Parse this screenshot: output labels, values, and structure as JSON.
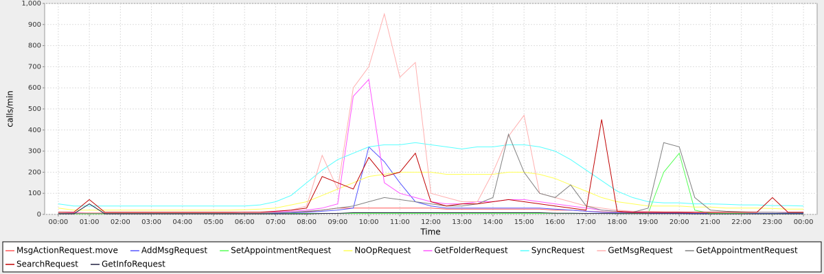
{
  "chart_data": {
    "type": "line",
    "y_label": "calls/min",
    "x_label": "Time",
    "xlim": [
      -0.44,
      24.44
    ],
    "ylim": [
      0,
      1000
    ],
    "xticks": [
      {
        "value": 0,
        "label": "00:00"
      },
      {
        "value": 1,
        "label": "01:00"
      },
      {
        "value": 2,
        "label": "02:00"
      },
      {
        "value": 3,
        "label": "03:00"
      },
      {
        "value": 4,
        "label": "04:00"
      },
      {
        "value": 5,
        "label": "05:00"
      },
      {
        "value": 6,
        "label": "06:00"
      },
      {
        "value": 7,
        "label": "07:00"
      },
      {
        "value": 8,
        "label": "08:00"
      },
      {
        "value": 9,
        "label": "09:00"
      },
      {
        "value": 10,
        "label": "10:00"
      },
      {
        "value": 11,
        "label": "11:00"
      },
      {
        "value": 12,
        "label": "12:00"
      },
      {
        "value": 13,
        "label": "13:00"
      },
      {
        "value": 14,
        "label": "14:00"
      },
      {
        "value": 15,
        "label": "15:00"
      },
      {
        "value": 16,
        "label": "16:00"
      },
      {
        "value": 17,
        "label": "17:00"
      },
      {
        "value": 18,
        "label": "18:00"
      },
      {
        "value": 19,
        "label": "19:00"
      },
      {
        "value": 20,
        "label": "20:00"
      },
      {
        "value": 21,
        "label": "21:00"
      },
      {
        "value": 22,
        "label": "22:00"
      },
      {
        "value": 23,
        "label": "23:00"
      },
      {
        "value": 24,
        "label": "00:00"
      }
    ],
    "yticks": [
      0,
      100,
      200,
      300,
      400,
      500,
      600,
      700,
      800,
      900,
      {
        "value": 1000,
        "label": "1,000"
      }
    ],
    "grid": true,
    "x": [
      0,
      0.5,
      1,
      1.5,
      2,
      2.5,
      3,
      3.5,
      4,
      4.5,
      5,
      5.5,
      6,
      6.5,
      7,
      7.5,
      8,
      8.5,
      9,
      9.5,
      10,
      10.5,
      11,
      11.5,
      12,
      12.5,
      13,
      13.5,
      14,
      14.5,
      15,
      15.5,
      16,
      16.5,
      17,
      17.5,
      18,
      18.5,
      19,
      19.5,
      20,
      20.5,
      21,
      21.5,
      22,
      22.5,
      23,
      23.5,
      24
    ],
    "series": [
      {
        "name": "MsgActionRequest.move",
        "color": "#ff5555",
        "values": [
          3,
          3,
          3,
          3,
          3,
          3,
          3,
          3,
          3,
          3,
          3,
          3,
          3,
          3,
          5,
          8,
          12,
          20,
          30,
          30,
          30,
          30,
          30,
          30,
          30,
          25,
          25,
          25,
          25,
          25,
          25,
          25,
          20,
          20,
          15,
          12,
          10,
          8,
          8,
          8,
          8,
          6,
          6,
          5,
          5,
          5,
          5,
          4,
          4
        ]
      },
      {
        "name": "AddMsgRequest",
        "color": "#5555ff",
        "values": [
          5,
          5,
          5,
          5,
          5,
          5,
          5,
          5,
          5,
          5,
          5,
          5,
          5,
          5,
          5,
          8,
          10,
          15,
          20,
          30,
          320,
          250,
          150,
          60,
          40,
          30,
          30,
          30,
          30,
          30,
          30,
          30,
          25,
          20,
          15,
          10,
          8,
          6,
          6,
          6,
          6,
          5,
          5,
          5,
          5,
          5,
          5,
          5,
          5
        ]
      },
      {
        "name": "SetAppointmentRequest",
        "color": "#55ff55",
        "values": [
          3,
          3,
          3,
          3,
          3,
          3,
          3,
          3,
          3,
          3,
          3,
          3,
          3,
          3,
          3,
          5,
          5,
          5,
          5,
          5,
          5,
          5,
          5,
          5,
          5,
          5,
          5,
          5,
          5,
          5,
          5,
          5,
          5,
          5,
          5,
          5,
          5,
          5,
          5,
          200,
          290,
          20,
          5,
          5,
          5,
          3,
          3,
          3,
          3
        ]
      },
      {
        "name": "NoOpRequest",
        "color": "#ffff55",
        "values": [
          30,
          20,
          20,
          20,
          20,
          20,
          20,
          20,
          20,
          20,
          20,
          20,
          22,
          25,
          30,
          45,
          60,
          90,
          120,
          150,
          180,
          190,
          200,
          200,
          200,
          190,
          190,
          190,
          190,
          200,
          200,
          190,
          170,
          140,
          110,
          80,
          60,
          50,
          40,
          40,
          40,
          35,
          35,
          30,
          30,
          30,
          28,
          25,
          25
        ]
      },
      {
        "name": "GetFolderRequest",
        "color": "#ff55ff",
        "values": [
          10,
          8,
          8,
          8,
          8,
          8,
          8,
          8,
          8,
          8,
          8,
          8,
          10,
          10,
          12,
          15,
          20,
          30,
          50,
          560,
          640,
          150,
          100,
          80,
          60,
          50,
          50,
          60,
          60,
          70,
          70,
          60,
          50,
          40,
          30,
          20,
          15,
          12,
          10,
          10,
          10,
          10,
          10,
          10,
          10,
          10,
          10,
          10,
          10
        ]
      },
      {
        "name": "SyncRequest",
        "color": "#55ffff",
        "values": [
          50,
          40,
          40,
          40,
          40,
          40,
          40,
          40,
          40,
          40,
          40,
          40,
          40,
          45,
          60,
          90,
          150,
          210,
          260,
          290,
          320,
          330,
          330,
          340,
          330,
          320,
          310,
          320,
          320,
          330,
          330,
          320,
          300,
          260,
          210,
          160,
          110,
          80,
          60,
          55,
          55,
          50,
          50,
          48,
          45,
          45,
          42,
          42,
          40
        ]
      },
      {
        "name": "GetMsgRequest",
        "color": "#ffafaf",
        "values": [
          10,
          10,
          8,
          8,
          8,
          8,
          8,
          8,
          8,
          8,
          8,
          8,
          10,
          10,
          15,
          20,
          40,
          280,
          120,
          600,
          700,
          950,
          650,
          720,
          100,
          80,
          60,
          60,
          200,
          370,
          470,
          100,
          80,
          60,
          40,
          30,
          20,
          15,
          15,
          12,
          12,
          10,
          10,
          10,
          10,
          10,
          10,
          8,
          8
        ]
      },
      {
        "name": "GetAppointmentRequest",
        "color": "#808080",
        "values": [
          5,
          5,
          5,
          5,
          5,
          5,
          5,
          5,
          5,
          5,
          5,
          5,
          5,
          5,
          8,
          10,
          15,
          20,
          30,
          40,
          60,
          80,
          70,
          60,
          50,
          40,
          40,
          50,
          80,
          380,
          200,
          100,
          80,
          140,
          40,
          20,
          15,
          10,
          30,
          340,
          320,
          80,
          20,
          15,
          12,
          10,
          10,
          8,
          8
        ]
      },
      {
        "name": "SearchRequest",
        "color": "#c00000",
        "values": [
          10,
          10,
          70,
          10,
          10,
          10,
          10,
          10,
          10,
          10,
          10,
          10,
          10,
          10,
          15,
          20,
          30,
          180,
          150,
          120,
          270,
          180,
          200,
          290,
          60,
          40,
          50,
          50,
          60,
          70,
          60,
          50,
          40,
          30,
          20,
          450,
          15,
          10,
          10,
          10,
          10,
          10,
          10,
          10,
          10,
          10,
          80,
          10,
          10
        ]
      },
      {
        "name": "GetInfoRequest",
        "color": "#202040",
        "values": [
          3,
          3,
          50,
          3,
          3,
          3,
          3,
          3,
          3,
          3,
          3,
          3,
          3,
          3,
          3,
          3,
          3,
          5,
          5,
          8,
          8,
          8,
          8,
          8,
          8,
          8,
          8,
          8,
          8,
          8,
          8,
          8,
          6,
          6,
          5,
          5,
          4,
          4,
          4,
          4,
          4,
          3,
          3,
          3,
          3,
          3,
          3,
          3,
          3
        ]
      }
    ]
  }
}
